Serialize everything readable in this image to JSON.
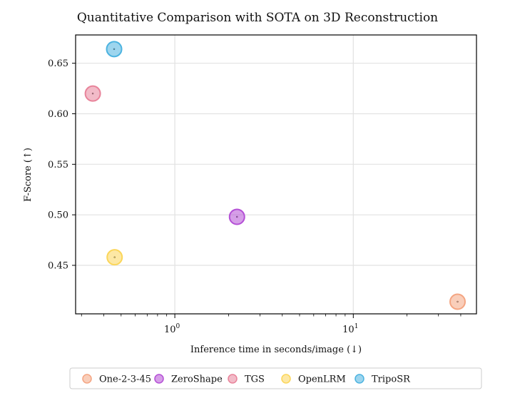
{
  "chart_data": {
    "type": "scatter",
    "title": "Quantitative Comparison with SOTA on 3D Reconstruction",
    "xlabel": "Inference time in seconds/image (↓)",
    "ylabel": "F-Score (↑)",
    "xscale": "log",
    "xlim": [
      0.278,
      49
    ],
    "ylim": [
      0.402,
      0.678
    ],
    "grid": true,
    "legend_position": "bottom-outside",
    "x_ticks": [
      {
        "value": 1,
        "base": "10",
        "exp": "0"
      },
      {
        "value": 10,
        "base": "10",
        "exp": "1"
      }
    ],
    "y_ticks": [
      0.45,
      0.5,
      0.55,
      0.6,
      0.65
    ],
    "y_tick_labels": [
      "0.45",
      "0.50",
      "0.55",
      "0.60",
      "0.65"
    ],
    "series": [
      {
        "name": "One-2-3-45",
        "x": 38.4,
        "y": 0.414,
        "color": "#f4a582"
      },
      {
        "name": "ZeroShape",
        "x": 2.23,
        "y": 0.498,
        "color": "#b44fd6"
      },
      {
        "name": "TGS",
        "x": 0.347,
        "y": 0.62,
        "color": "#e8839a"
      },
      {
        "name": "OpenLRM",
        "x": 0.46,
        "y": 0.458,
        "color": "#fbd65a"
      },
      {
        "name": "TripoSR",
        "x": 0.457,
        "y": 0.664,
        "color": "#4cb3e0"
      }
    ]
  }
}
